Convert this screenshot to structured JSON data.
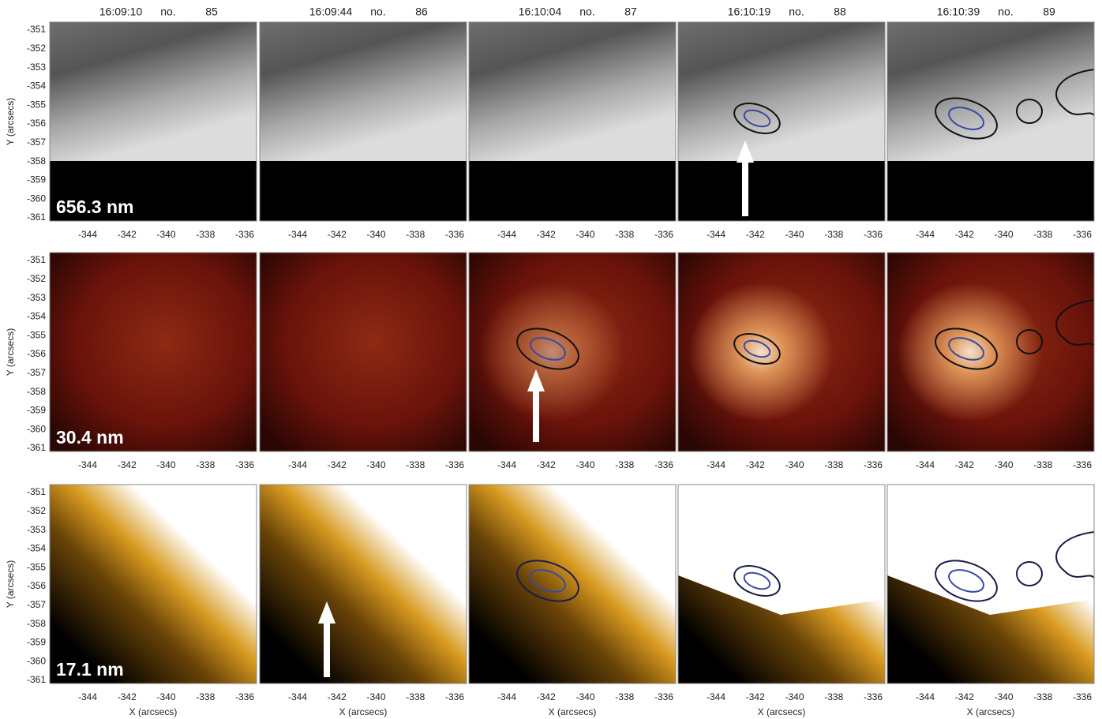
{
  "columns": [
    {
      "time": "16:09:10",
      "no_label": "no.",
      "number": 85
    },
    {
      "time": "16:09:44",
      "no_label": "no.",
      "number": 86
    },
    {
      "time": "16:10:04",
      "no_label": "no.",
      "number": 87
    },
    {
      "time": "16:10:19",
      "no_label": "no.",
      "number": 88
    },
    {
      "time": "16:10:39",
      "no_label": "no.",
      "number": 89
    }
  ],
  "rows": [
    {
      "label": "656.3 nm"
    },
    {
      "label": "30.4 nm"
    },
    {
      "label": "17.1 nm"
    }
  ],
  "y_axis": {
    "label": "Y (arcsecs)",
    "ticks": [
      -351,
      -352,
      -353,
      -354,
      -355,
      -356,
      -357,
      -358,
      -359,
      -360,
      -361
    ]
  },
  "x_axis": {
    "label": "X (arcsecs)",
    "ticks": [
      -344,
      -342,
      -340,
      -338,
      -336
    ]
  }
}
